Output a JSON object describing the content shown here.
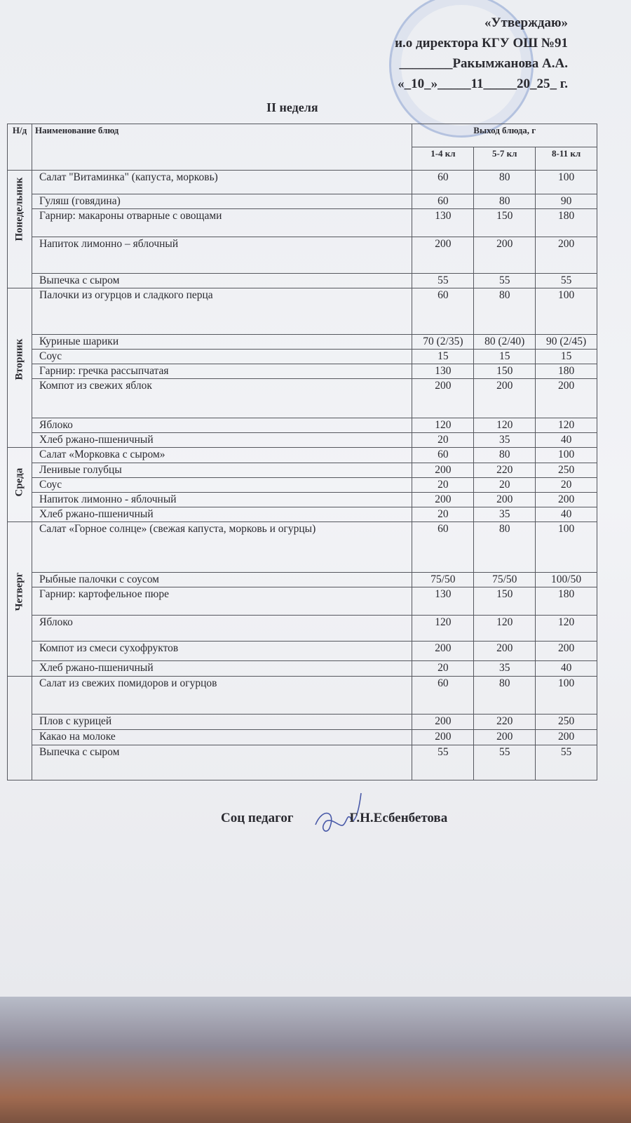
{
  "header": {
    "approve": "«Утверждаю»",
    "position": "и.о директора КГУ ОШ №91",
    "name": "________Ракымжанова А.А.",
    "date": "«_10_»_____11_____20_25_ г.",
    "week": "II неделя"
  },
  "table": {
    "col_num": "Н/д",
    "col_name": "Наименование блюд",
    "col_output": "Выход блюда, г",
    "grades": [
      "1-4 кл",
      "5-7 кл",
      "8-11 кл"
    ],
    "days": [
      {
        "day": "Понедельник",
        "rows": [
          {
            "name": "Салат \"Витаминка\" (капуста, морковь)",
            "v": [
              "60",
              "80",
              "100"
            ]
          },
          {
            "name": "Гуляш (говядина)",
            "v": [
              "60",
              "80",
              "90"
            ]
          },
          {
            "name": "Гарнир: макароны отварные с овощами",
            "v": [
              "130",
              "150",
              "180"
            ]
          },
          {
            "name": "Напиток лимонно – яблочный",
            "v": [
              "200",
              "200",
              "200"
            ]
          },
          {
            "name": "Выпечка с сыром",
            "v": [
              "55",
              "55",
              "55"
            ]
          }
        ]
      },
      {
        "day": "Вторник",
        "rows": [
          {
            "name": "Палочки из огурцов и сладкого перца",
            "v": [
              "60",
              "80",
              "100"
            ]
          },
          {
            "name": "Куриные шарики",
            "v": [
              "70 (2/35)",
              "80 (2/40)",
              "90 (2/45)"
            ]
          },
          {
            "name": "Соус",
            "v": [
              "15",
              "15",
              "15"
            ]
          },
          {
            "name": "Гарнир: гречка рассыпчатая",
            "v": [
              "130",
              "150",
              "180"
            ]
          },
          {
            "name": "Компот из свежих яблок",
            "v": [
              "200",
              "200",
              "200"
            ]
          },
          {
            "name": "Яблоко",
            "v": [
              "120",
              "120",
              "120"
            ]
          },
          {
            "name": "Хлеб ржано-пшеничный",
            "v": [
              "20",
              "35",
              "40"
            ]
          }
        ]
      },
      {
        "day": "Среда",
        "rows": [
          {
            "name": "Салат «Морковка с сыром»",
            "v": [
              "60",
              "80",
              "100"
            ]
          },
          {
            "name": "Ленивые голубцы",
            "v": [
              "200",
              "220",
              "250"
            ]
          },
          {
            "name": "Соус",
            "v": [
              "20",
              "20",
              "20"
            ]
          },
          {
            "name": "Напиток лимонно - яблочный",
            "v": [
              "200",
              "200",
              "200"
            ]
          },
          {
            "name": "Хлеб ржано-пшеничный",
            "v": [
              "20",
              "35",
              "40"
            ]
          }
        ]
      },
      {
        "day": "Четверг",
        "rows": [
          {
            "name": "Салат «Горное солнце» (свежая капуста, морковь и огурцы)",
            "v": [
              "60",
              "80",
              "100"
            ]
          },
          {
            "name": "Рыбные палочки с соусом",
            "v": [
              "75/50",
              "75/50",
              "100/50"
            ]
          },
          {
            "name": "Гарнир:  картофельное пюре",
            "v": [
              "130",
              "150",
              "180"
            ]
          },
          {
            "name": "Яблоко",
            "v": [
              "120",
              "120",
              "120"
            ]
          },
          {
            "name": "Компот из смеси сухофруктов",
            "v": [
              "200",
              "200",
              "200"
            ]
          },
          {
            "name": "Хлеб ржано-пшеничный",
            "v": [
              "20",
              "35",
              "40"
            ]
          }
        ]
      },
      {
        "day": "",
        "rows": [
          {
            "name": "Салат из свежих помидоров и огурцов",
            "v": [
              "60",
              "80",
              "100"
            ]
          },
          {
            "name": "Плов с курицей",
            "v": [
              "200",
              "220",
              "250"
            ]
          },
          {
            "name": "Какао на молоке",
            "v": [
              "200",
              "200",
              "200"
            ]
          },
          {
            "name": "Выпечка с сыром",
            "v": [
              "55",
              "55",
              "55"
            ]
          }
        ]
      }
    ]
  },
  "footer": {
    "role": "Соц педагог",
    "name": "Г.Н.Есбенбетова"
  },
  "colors": {
    "paper": "#eceef2",
    "ink": "#2a2a30",
    "stamp": "#6e8cc8"
  }
}
